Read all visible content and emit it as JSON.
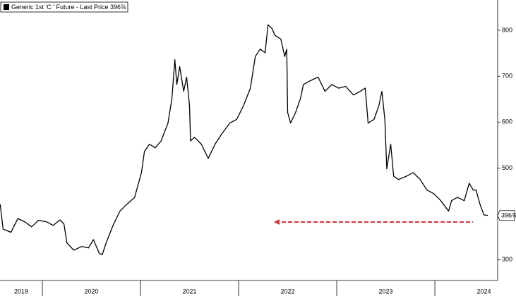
{
  "chart_data": {
    "type": "line",
    "series": [
      {
        "name": "Generic 1st 'C ' Future - Last Price 396⅝",
        "color": "#000000",
        "x": [
          2019.57,
          2019.6,
          2019.68,
          2019.75,
          2019.82,
          2019.89,
          2019.96,
          2020.04,
          2020.11,
          2020.18,
          2020.22,
          2020.25,
          2020.32,
          2020.4,
          2020.47,
          2020.52,
          2020.58,
          2020.61,
          2020.65,
          2020.72,
          2020.79,
          2020.86,
          2020.94,
          2021.01,
          2021.04,
          2021.09,
          2021.15,
          2021.21,
          2021.28,
          2021.32,
          2021.35,
          2021.37,
          2021.4,
          2021.44,
          2021.47,
          2021.5,
          2021.51,
          2021.55,
          2021.62,
          2021.69,
          2021.76,
          2021.83,
          2021.91,
          2021.98,
          2022.05,
          2022.12,
          2022.17,
          2022.22,
          2022.27,
          2022.3,
          2022.34,
          2022.37,
          2022.43,
          2022.47,
          2022.49,
          2022.5,
          2022.53,
          2022.58,
          2022.63,
          2022.66,
          2022.73,
          2022.81,
          2022.88,
          2022.95,
          2023.02,
          2023.09,
          2023.17,
          2023.24,
          2023.29,
          2023.32,
          2023.38,
          2023.43,
          2023.46,
          2023.49,
          2023.51,
          2023.55,
          2023.58,
          2023.63,
          2023.71,
          2023.78,
          2023.85,
          2023.92,
          2023.99,
          2024.06,
          2024.14,
          2024.17,
          2024.23,
          2024.3,
          2024.35,
          2024.39,
          2024.42,
          2024.46,
          2024.5,
          2024.54
        ],
        "values": [
          421,
          367,
          360,
          390,
          383,
          372,
          386,
          383,
          375,
          387,
          378,
          337,
          321,
          329,
          326,
          344,
          314,
          311,
          337,
          375,
          406,
          421,
          436,
          490,
          536,
          552,
          544,
          559,
          598,
          651,
          736,
          682,
          721,
          667,
          698,
          636,
          559,
          567,
          552,
          521,
          552,
          575,
          598,
          606,
          636,
          674,
          743,
          759,
          751,
          812,
          804,
          789,
          781,
          743,
          759,
          621,
          598,
          621,
          651,
          682,
          690,
          698,
          667,
          682,
          674,
          678,
          659,
          667,
          674,
          598,
          606,
          636,
          667,
          606,
          498,
          552,
          482,
          475,
          482,
          490,
          475,
          452,
          444,
          429,
          406,
          429,
          436,
          429,
          467,
          452,
          452,
          421,
          398,
          396.625
        ]
      }
    ],
    "last_label": "396⅝",
    "xlim": [
      2019.568,
      2024.64
    ],
    "xticks": [
      {
        "value": 2019.5,
        "label": "2019"
      },
      {
        "value": 2020.5,
        "label": "2020"
      },
      {
        "value": 2021.5,
        "label": "2021"
      },
      {
        "value": 2022.5,
        "label": "2022"
      },
      {
        "value": 2023.5,
        "label": "2023"
      },
      {
        "value": 2024.5,
        "label": "2024"
      }
    ],
    "ylim": [
      255,
      866
    ],
    "yticks": [
      300,
      400,
      500,
      600,
      700,
      800
    ]
  }
}
